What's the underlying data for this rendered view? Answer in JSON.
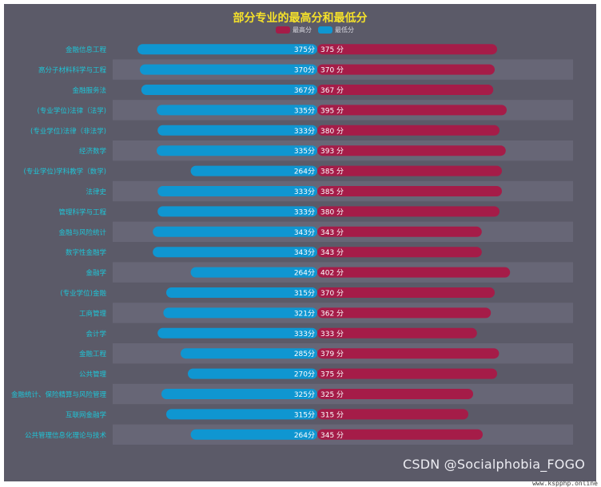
{
  "chart_data": {
    "type": "bar",
    "title": "部分专业的最高分和最低分",
    "legend": [
      {
        "name": "最高分",
        "color": "#a51c48"
      },
      {
        "name": "最低分",
        "color": "#0f96d1"
      }
    ],
    "categories": [
      "金融信息工程",
      "高分子材料科学与工程",
      "金融服务法",
      "(专业学位)法律（法学)",
      "(专业学位)法律（非法学)",
      "经济数学",
      "(专业学位)学科教学（数学)",
      "法律史",
      "管理科学与工程",
      "金融与风险统计",
      "数字性金融学",
      "金融学",
      "(专业学位)金融",
      "工商管理",
      "会计学",
      "金融工程",
      "公共管理",
      "金融统计、保险精算与风险管理",
      "互联网金融学",
      "公共管理信息化理论与技术"
    ],
    "series": [
      {
        "name": "最低分",
        "values": [
          375,
          370,
          367,
          335,
          333,
          335,
          264,
          333,
          333,
          343,
          343,
          264,
          315,
          321,
          333,
          285,
          270,
          325,
          315,
          264
        ],
        "suffix": "分"
      },
      {
        "name": "最高分",
        "values": [
          375,
          370,
          367,
          395,
          380,
          393,
          385,
          385,
          380,
          343,
          343,
          402,
          370,
          362,
          333,
          379,
          375,
          325,
          315,
          345
        ],
        "suffix": " 分"
      }
    ],
    "value_labels": {
      "low": [
        "375分",
        "370分",
        "367分",
        "335分",
        "333分",
        "335分",
        "264分",
        "333分",
        "333分",
        "343分",
        "343分",
        "264分",
        "315分",
        "321分",
        "333分",
        "285分",
        "270分",
        "325分",
        "315分",
        "264分"
      ],
      "high": [
        "375 分",
        "370 分",
        "367 分",
        "395 分",
        "380 分",
        "393 分",
        "385 分",
        "385 分",
        "380 分",
        "343 分",
        "343 分",
        "402 分",
        "370 分",
        "362 分",
        "333 分",
        "379 分",
        "375 分",
        "325 分",
        "315 分",
        "345 分"
      ]
    },
    "colors": {
      "high": "#a51c48",
      "low": "#0f96d1",
      "category_label": "#1fc4d6",
      "title": "#f5e12a"
    },
    "grid": false,
    "legend_position": "top-center"
  },
  "watermark": "CSDN @Socialphobia_FOGO",
  "url_text": "www.kspphp.online"
}
